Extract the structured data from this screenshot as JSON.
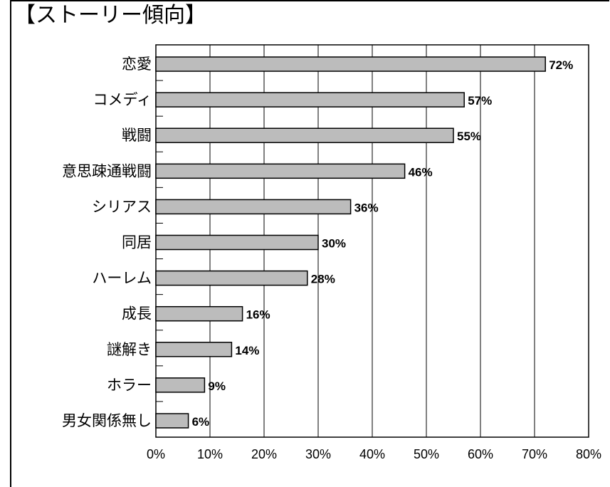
{
  "chart_data": {
    "type": "bar",
    "orientation": "horizontal",
    "title": "【ストーリー傾向】",
    "categories": [
      "恋愛",
      "コメディ",
      "戦闘",
      "意思疎通戦闘",
      "シリアス",
      "同居",
      "ハーレム",
      "成長",
      "謎解き",
      "ホラー",
      "男女関係無し"
    ],
    "values": [
      72,
      57,
      55,
      46,
      36,
      30,
      28,
      16,
      14,
      9,
      6
    ],
    "value_labels": [
      "72%",
      "57%",
      "55%",
      "46%",
      "36%",
      "30%",
      "28%",
      "16%",
      "14%",
      "9%",
      "6%"
    ],
    "xticks": [
      0,
      10,
      20,
      30,
      40,
      50,
      60,
      70,
      80
    ],
    "xtick_labels": [
      "0%",
      "10%",
      "20%",
      "30%",
      "40%",
      "50%",
      "60%",
      "70%",
      "80%"
    ],
    "xlim": [
      0,
      80
    ],
    "xlabel": "",
    "ylabel": "",
    "grid": "vertical",
    "bar_color": "#bcbcbc",
    "bar_edge_color": "#000000"
  }
}
